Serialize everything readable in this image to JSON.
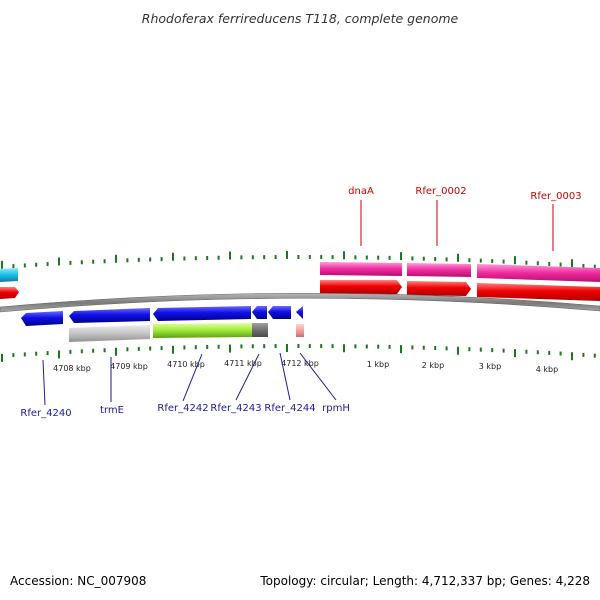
{
  "title": "Rhodoferax ferrireducens T118, complete genome",
  "footer": {
    "accession": "Accession: NC_007908",
    "summary": "Topology: circular; Length: 4,712,337 bp; Genes: 4,228"
  },
  "colors": {
    "background": "#ffffff",
    "backbone": "#808080",
    "ticks": "#1a7a1a",
    "forward_label": "#cc0000",
    "reverse_label": "#1a1aa8"
  },
  "ticks": [
    "4708 kbp",
    "4709 kbp",
    "4710 kbp",
    "4711 kbp",
    "4712 kbp",
    "1 kbp",
    "2 kbp",
    "3 kbp",
    "4 kbp"
  ],
  "forward_labels": [
    "dnaA",
    "Rfer_0002",
    "Rfer_0003"
  ],
  "reverse_labels": [
    "Rfer_4240",
    "trmE",
    "Rfer_4242",
    "Rfer_4243",
    "Rfer_4244",
    "rpmH"
  ]
}
